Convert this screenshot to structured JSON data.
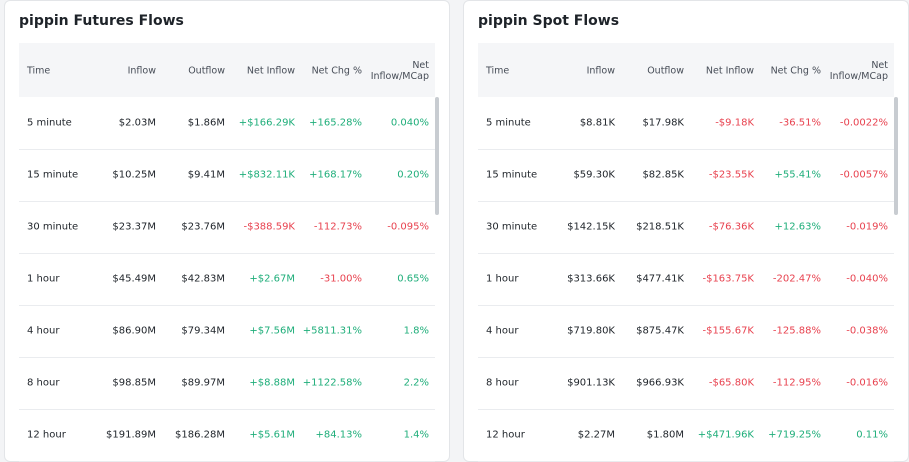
{
  "panels": [
    {
      "title": "pippin Futures Flows",
      "columns": [
        "Time",
        "Inflow",
        "Outflow",
        "Net Inflow",
        "Net Chg %",
        "Net Inflow/MCap"
      ],
      "rows": [
        [
          "5 minute",
          "$2.03M",
          "$1.86M",
          "+$166.29K",
          "+165.28%",
          "0.040%"
        ],
        [
          "15 minute",
          "$10.25M",
          "$9.41M",
          "+$832.11K",
          "+168.17%",
          "0.20%"
        ],
        [
          "30 minute",
          "$23.37M",
          "$23.76M",
          "-$388.59K",
          "-112.73%",
          "-0.095%"
        ],
        [
          "1 hour",
          "$45.49M",
          "$42.83M",
          "+$2.67M",
          "-31.00%",
          "0.65%"
        ],
        [
          "4 hour",
          "$86.90M",
          "$79.34M",
          "+$7.56M",
          "+5811.31%",
          "1.8%"
        ],
        [
          "8 hour",
          "$98.85M",
          "$89.97M",
          "+$8.88M",
          "+1122.58%",
          "2.2%"
        ],
        [
          "12 hour",
          "$191.89M",
          "$186.28M",
          "+$5.61M",
          "+84.13%",
          "1.4%"
        ]
      ]
    },
    {
      "title": "pippin Spot Flows",
      "columns": [
        "Time",
        "Inflow",
        "Outflow",
        "Net Inflow",
        "Net Chg %",
        "Net Inflow/MCap"
      ],
      "rows": [
        [
          "5 minute",
          "$8.81K",
          "$17.98K",
          "-$9.18K",
          "-36.51%",
          "-0.0022%"
        ],
        [
          "15 minute",
          "$59.30K",
          "$82.85K",
          "-$23.55K",
          "+55.41%",
          "-0.0057%"
        ],
        [
          "30 minute",
          "$142.15K",
          "$218.51K",
          "-$76.36K",
          "+12.63%",
          "-0.019%"
        ],
        [
          "1 hour",
          "$313.66K",
          "$477.41K",
          "-$163.75K",
          "-202.47%",
          "-0.040%"
        ],
        [
          "4 hour",
          "$719.80K",
          "$875.47K",
          "-$155.67K",
          "-125.88%",
          "-0.038%"
        ],
        [
          "8 hour",
          "$901.13K",
          "$966.93K",
          "-$65.80K",
          "-112.95%",
          "-0.016%"
        ],
        [
          "12 hour",
          "$2.27M",
          "$1.80M",
          "+$471.96K",
          "+719.25%",
          "0.11%"
        ]
      ]
    }
  ]
}
